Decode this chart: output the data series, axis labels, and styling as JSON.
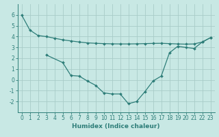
{
  "xlabel": "Humidex (Indice chaleur)",
  "x": [
    0,
    1,
    2,
    3,
    4,
    5,
    6,
    7,
    8,
    9,
    10,
    11,
    12,
    13,
    14,
    15,
    16,
    17,
    18,
    19,
    20,
    21,
    22,
    23
  ],
  "line1": [
    6.0,
    4.6,
    4.1,
    4.0,
    3.85,
    3.7,
    3.6,
    3.5,
    3.42,
    3.38,
    3.35,
    3.33,
    3.32,
    3.32,
    3.33,
    3.35,
    3.37,
    3.38,
    3.35,
    3.32,
    3.3,
    3.32,
    3.5,
    3.9
  ],
  "line2_x": [
    3,
    5,
    6,
    7,
    8,
    9,
    10,
    11,
    12,
    13,
    14,
    15,
    16,
    17,
    18,
    19,
    20,
    21,
    22,
    23
  ],
  "line2_y": [
    2.3,
    1.6,
    0.4,
    0.35,
    -0.1,
    -0.5,
    -1.2,
    -1.3,
    -1.3,
    -2.2,
    -2.0,
    -1.1,
    -0.1,
    0.35,
    2.5,
    3.1,
    3.0,
    2.9,
    3.5,
    3.9
  ],
  "color": "#2d7d78",
  "bg_color": "#c8e8e4",
  "grid_color": "#a8ccc8",
  "ylim": [
    -3,
    7
  ],
  "xlim": [
    -0.5,
    23.5
  ],
  "yticks": [
    -2,
    -1,
    0,
    1,
    2,
    3,
    4,
    5,
    6
  ],
  "xticks": [
    0,
    1,
    2,
    3,
    4,
    5,
    6,
    7,
    8,
    9,
    10,
    11,
    12,
    13,
    14,
    15,
    16,
    17,
    18,
    19,
    20,
    21,
    22,
    23
  ],
  "marker": "D",
  "markersize": 2.0,
  "linewidth": 0.9,
  "tick_fontsize": 5.5,
  "xlabel_fontsize": 6.5
}
